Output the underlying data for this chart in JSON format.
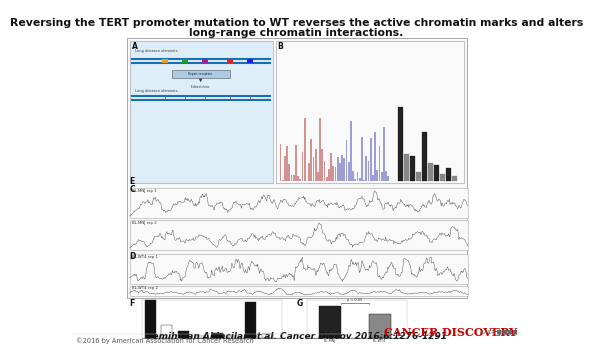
{
  "title_line1": "Reversing the TERT promoter mutation to WT reverses the active chromatin marks and alters",
  "title_line2": "long-range chromatin interactions.",
  "citation": "Semih Can Akincilar et al. Cancer Discov 2016;6:1276-1291",
  "copyright": "©2016 by American Association for Cancer Research",
  "journal_name": "CANCER DISCOVERY",
  "bg_color": "#ffffff",
  "title_fontsize": 7.8,
  "citation_fontsize": 6.5,
  "copyright_fontsize": 4.8,
  "journal_fontsize": 8.0,
  "aacr_fontsize": 4.0
}
